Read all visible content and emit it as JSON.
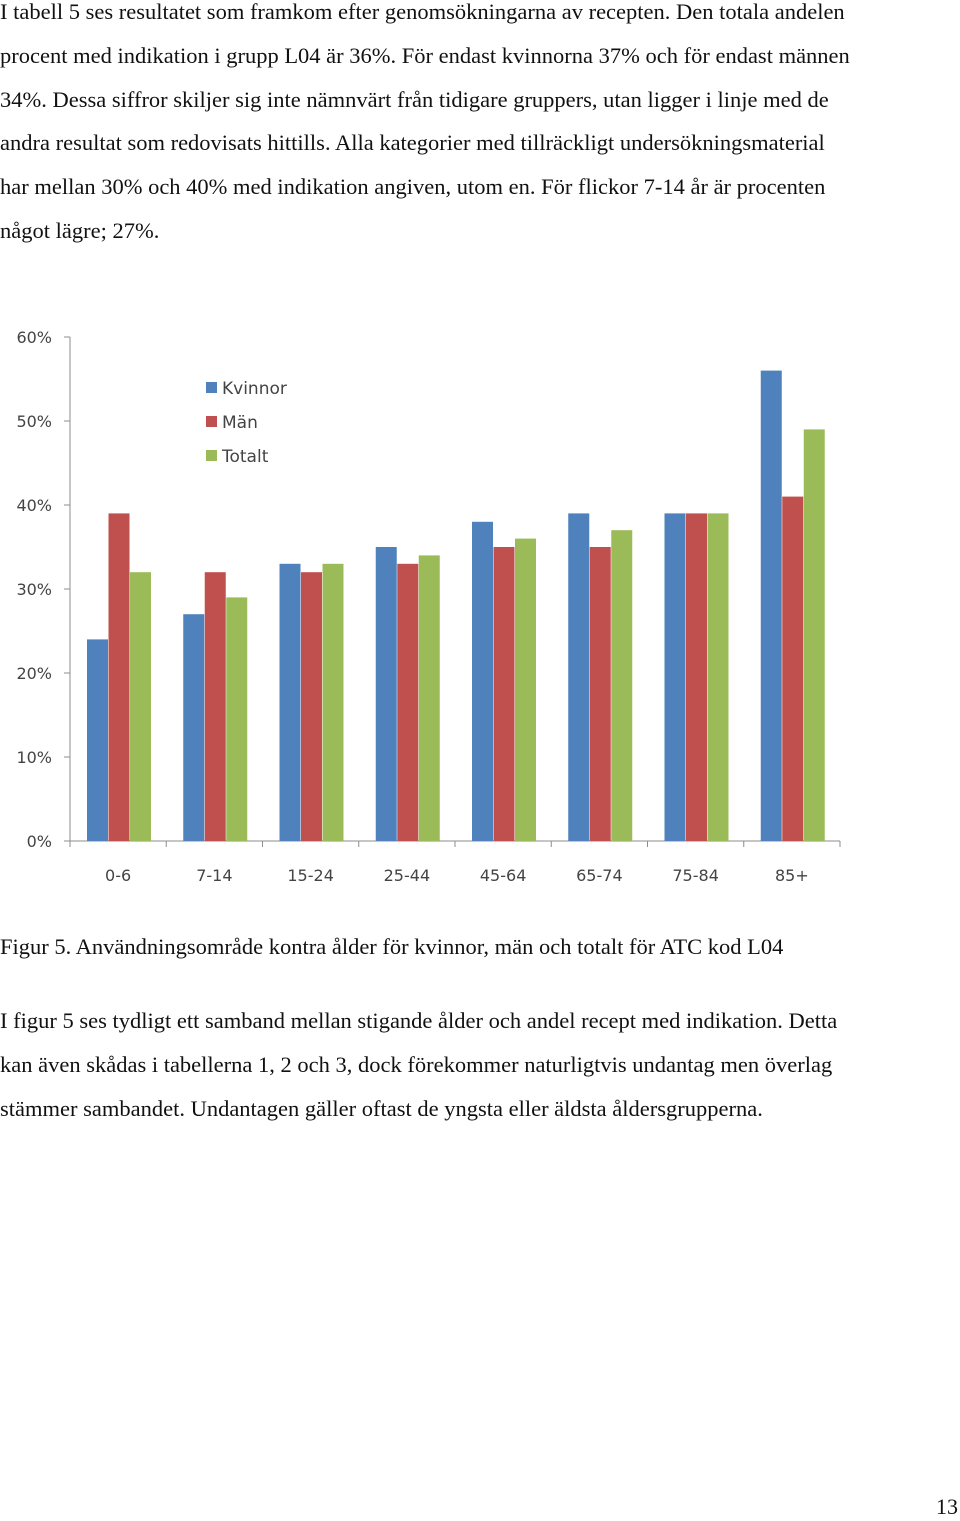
{
  "paragraph_1": {
    "lines": [
      "I tabell 5 ses resultatet som framkom efter genomsökningarna av recepten. Den totala andelen",
      "procent med indikation i grupp L04 är 36%. För endast kvinnorna 37% och för endast männen",
      "34%. Dessa siffror skiljer sig inte nämnvärt från tidigare gruppers, utan ligger i linje med de",
      "andra resultat som redovisats hittills. Alla kategorier med tillräckligt undersökningsmaterial",
      "har mellan 30% och 40% med indikation angiven, utom en. För flickor 7-14 år är procenten",
      "något lägre; 27%."
    ]
  },
  "caption": "Figur 5. Användningsområde kontra ålder för kvinnor, män och totalt för ATC kod L04",
  "paragraph_2": {
    "lines": [
      "I figur 5 ses tydligt ett samband mellan stigande ålder och andel recept med indikation. Detta",
      "kan även skådas i tabellerna 1, 2 och 3, dock förekommer naturligtvis undantag men överlag",
      "stämmer sambandet. Undantagen gäller oftast de yngsta eller äldsta åldersgrupperna."
    ]
  },
  "page_number": "13",
  "chart_data": {
    "type": "bar",
    "title": "",
    "xlabel": "",
    "ylabel": "",
    "categories": [
      "0-6",
      "7-14",
      "15-24",
      "25-44",
      "45-64",
      "65-74",
      "75-84",
      "85+"
    ],
    "series": [
      {
        "name": "Kvinnor",
        "color": "#4f81bd",
        "values": [
          24,
          27,
          33,
          35,
          38,
          39,
          39,
          56
        ]
      },
      {
        "name": "Män",
        "color": "#c0504d",
        "values": [
          39,
          32,
          32,
          33,
          35,
          35,
          39,
          41
        ]
      },
      {
        "name": "Totalt",
        "color": "#9bbb59",
        "values": [
          32,
          29,
          33,
          34,
          36,
          37,
          39,
          49
        ]
      }
    ],
    "ylim": [
      0,
      60
    ],
    "yticks": [
      0,
      10,
      20,
      30,
      40,
      50,
      60
    ],
    "ytick_labels": [
      "0%",
      "10%",
      "20%",
      "30%",
      "40%",
      "50%",
      "60%"
    ],
    "grid": false,
    "legend_position": "top-left"
  }
}
